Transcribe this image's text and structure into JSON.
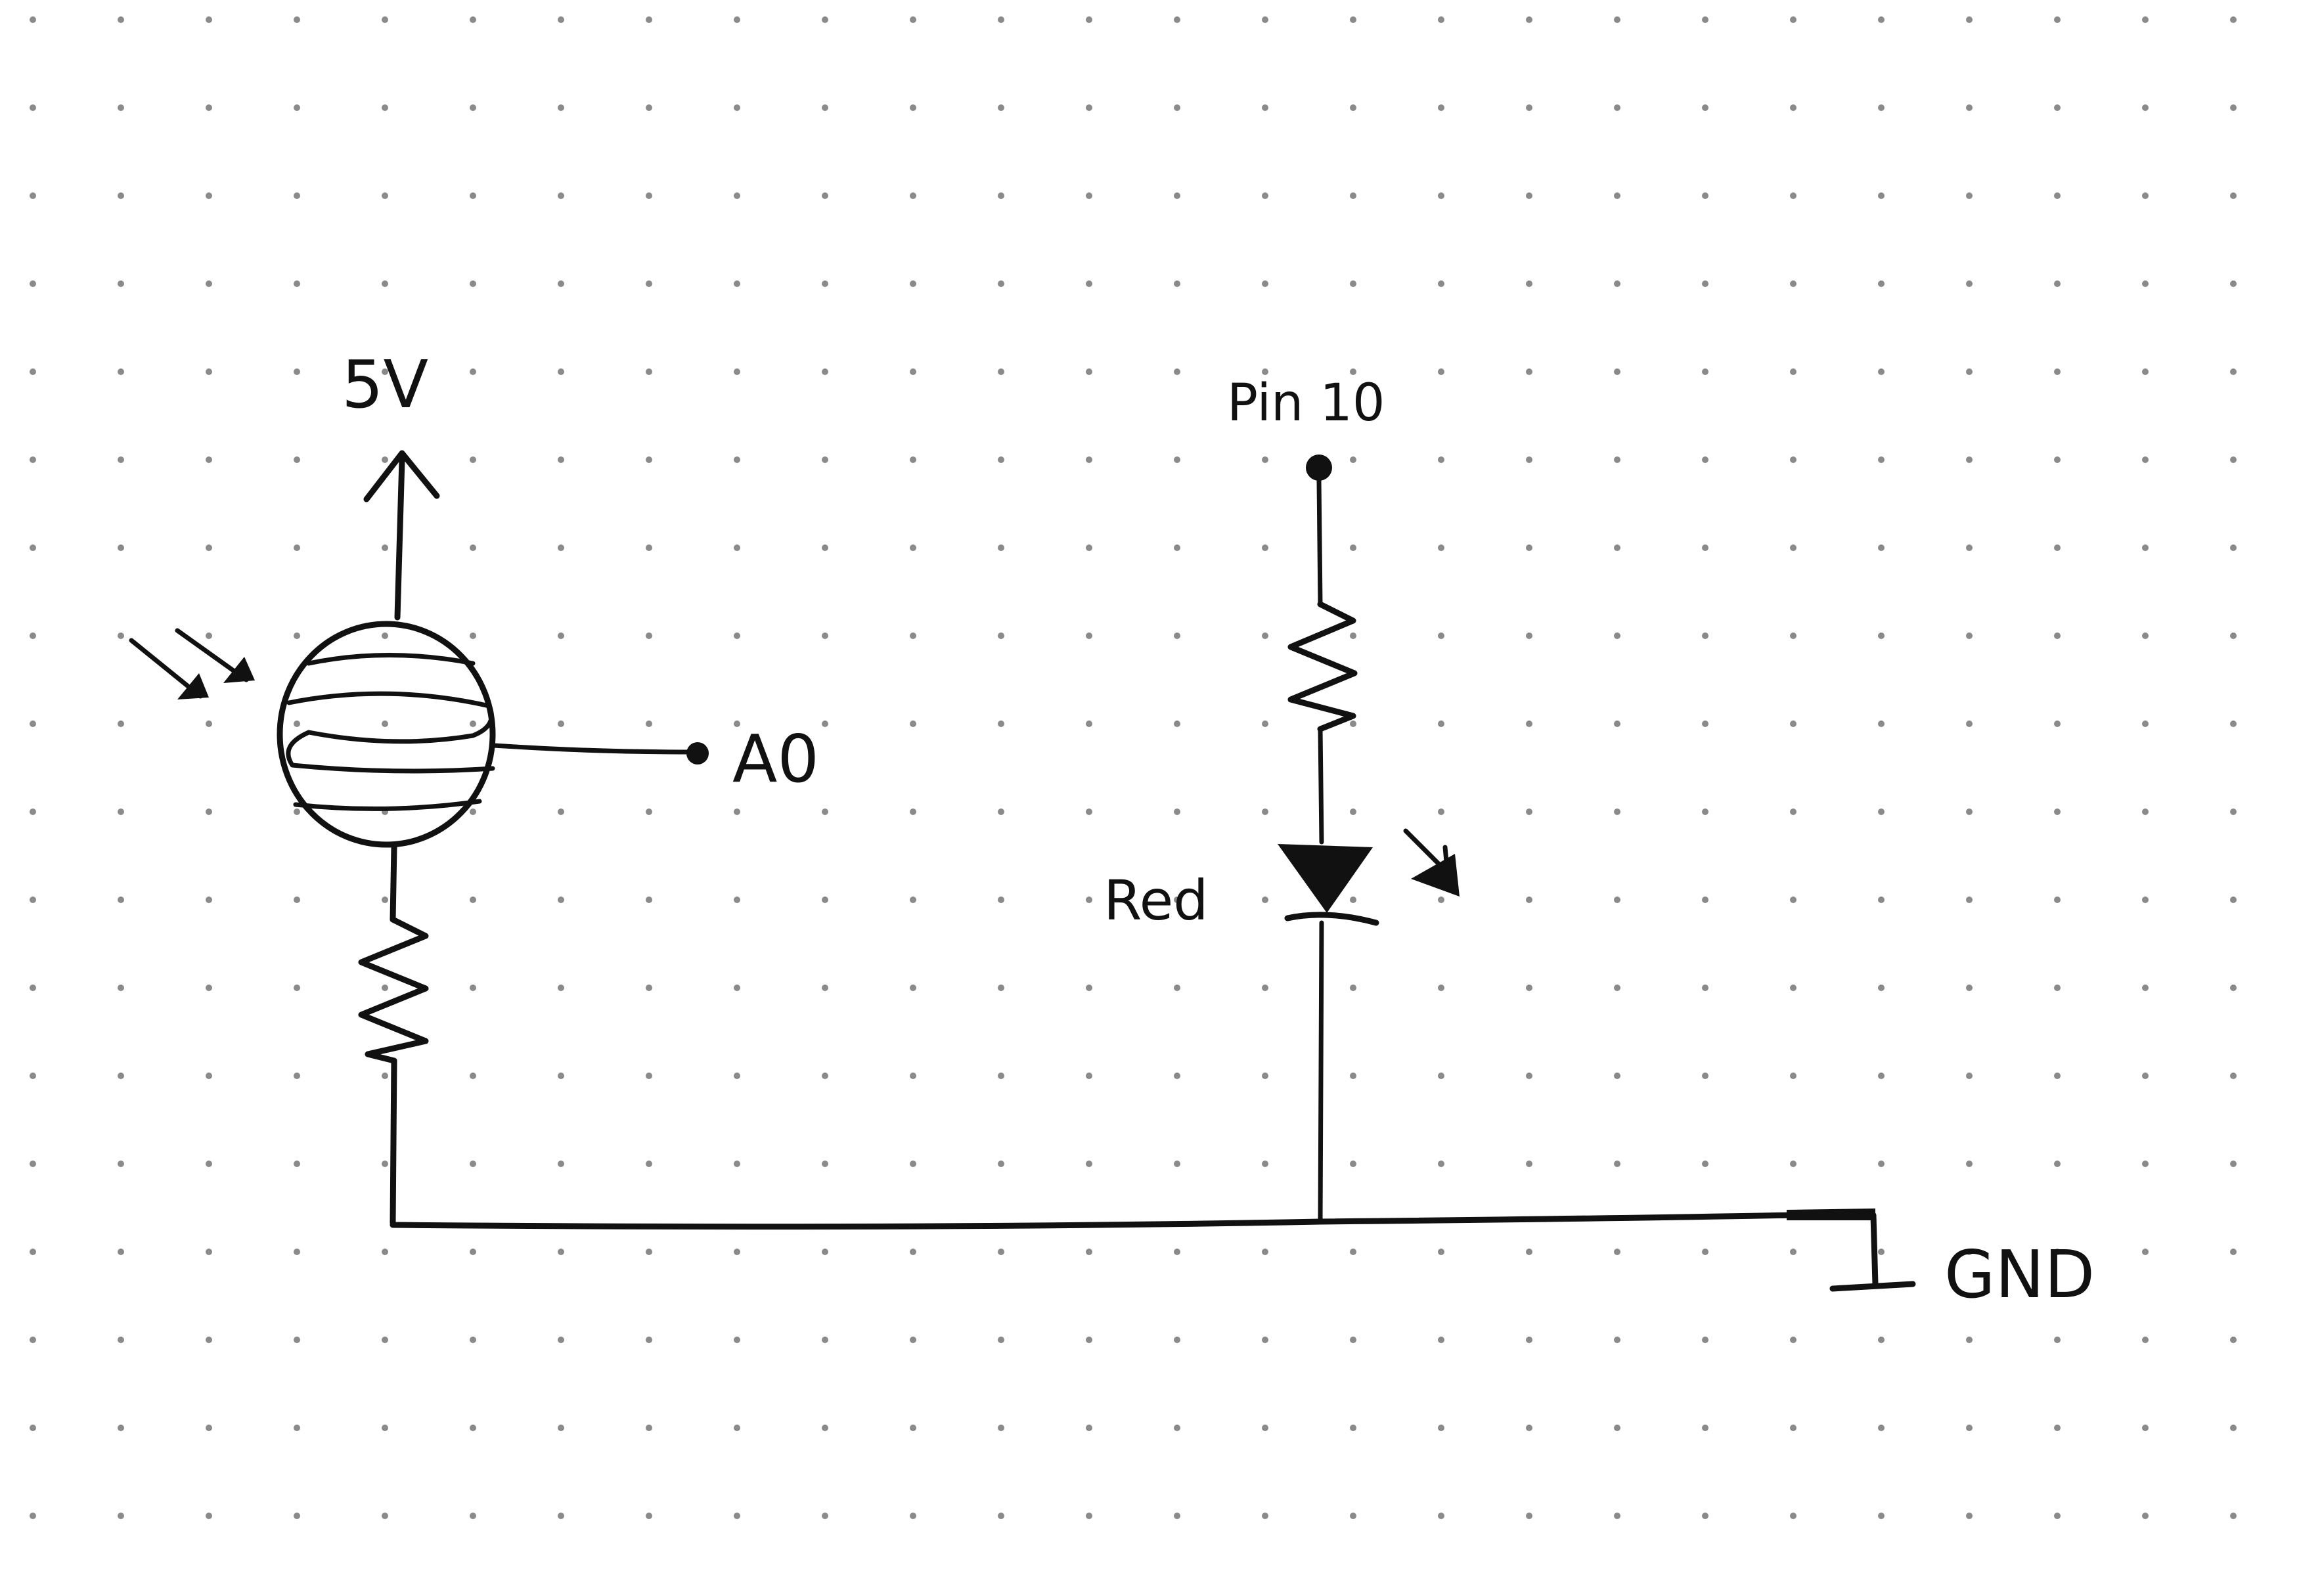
{
  "diagram": {
    "labels": {
      "supply": "5V",
      "analog_pin": "A0",
      "digital_pin": "Pin 10",
      "led_color": "Red",
      "ground": "GND"
    },
    "colors": {
      "ink": "#111111",
      "paper": "#ffffff",
      "dot_grid": "#8a8a8a"
    },
    "components": [
      {
        "type": "photoresistor-icon"
      },
      {
        "type": "resistor-icon"
      },
      {
        "type": "resistor-icon"
      },
      {
        "type": "led-icon"
      },
      {
        "type": "ground-icon"
      }
    ]
  }
}
